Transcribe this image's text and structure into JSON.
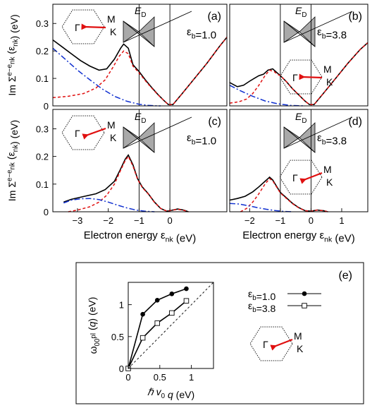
{
  "colors": {
    "total": "#000000",
    "red": "#e01010",
    "blue": "#1030d0",
    "cone": "#a9a9a9"
  },
  "chart_data": [
    {
      "id": "a",
      "type": "line",
      "panel_label": "(a)",
      "eps_label": "εb=1.0",
      "ylabel": "Im Σ^{e−e}_{nk} (ε_{nk}) (eV)",
      "xlim": [
        -3.8,
        1.85
      ],
      "ylim": [
        0,
        0.37
      ],
      "ticks": {
        "x": [],
        "y": [
          0,
          0.1,
          0.2,
          0.3
        ]
      },
      "vlines": [
        -1.0,
        0.0
      ],
      "ED_label": "E_D",
      "inset": {
        "gamma": "Γ",
        "m": "M",
        "k": "K",
        "arrow": "to-K"
      },
      "series": [
        {
          "color": "#000000",
          "dash": "",
          "x": [
            -3.8,
            -3.5,
            -3.2,
            -2.9,
            -2.6,
            -2.3,
            -2.05,
            -1.8,
            -1.6,
            -1.5,
            -1.35,
            -1.2,
            -1.0,
            -0.8,
            -0.6,
            -0.4,
            -0.2,
            -0.05,
            0.1,
            0.4,
            0.8,
            1.2,
            1.6,
            1.85
          ],
          "y": [
            0.24,
            0.215,
            0.19,
            0.165,
            0.145,
            0.13,
            0.135,
            0.17,
            0.21,
            0.225,
            0.21,
            0.15,
            0.125,
            0.095,
            0.068,
            0.043,
            0.02,
            0.005,
            0.005,
            0.045,
            0.1,
            0.155,
            0.215,
            0.25
          ]
        },
        {
          "color": "#e01010",
          "dash": "4,3",
          "x": [
            -3.8,
            -3.3,
            -2.8,
            -2.4,
            -2.1,
            -1.85,
            -1.65,
            -1.5,
            -1.35,
            -1.2,
            -1.0,
            -0.8,
            -0.6,
            -0.4,
            -0.2,
            -0.05,
            0.1,
            0.4,
            0.8,
            1.2,
            1.6,
            1.85
          ],
          "y": [
            0.03,
            0.035,
            0.045,
            0.065,
            0.095,
            0.14,
            0.18,
            0.2,
            0.19,
            0.145,
            0.12,
            0.092,
            0.066,
            0.042,
            0.02,
            0.005,
            0.005,
            0.045,
            0.1,
            0.155,
            0.215,
            0.25
          ]
        },
        {
          "color": "#1030d0",
          "dash": "8,3,2,3",
          "x": [
            -3.8,
            -3.4,
            -3.0,
            -2.6,
            -2.2,
            -1.8,
            -1.4,
            -1.0,
            -0.7,
            -0.5,
            -0.3
          ],
          "y": [
            0.21,
            0.17,
            0.13,
            0.095,
            0.062,
            0.035,
            0.017,
            0.006,
            0.002,
            0.0005,
            0
          ]
        }
      ]
    },
    {
      "id": "b",
      "type": "line",
      "panel_label": "(b)",
      "eps_label": "εb=3.8",
      "xlim": [
        -2.65,
        1.85
      ],
      "ylim": [
        0,
        0.37
      ],
      "ticks": {
        "x": [],
        "y": []
      },
      "vlines": [
        -1.0,
        0.0
      ],
      "ED_label": "E_D",
      "inset": {
        "gamma": "Γ",
        "m": "M",
        "k": "K",
        "arrow": "to-K"
      },
      "series": [
        {
          "color": "#000000",
          "dash": "",
          "x": [
            -2.65,
            -2.4,
            -2.2,
            -2.0,
            -1.85,
            -1.7,
            -1.55,
            -1.4,
            -1.25,
            -1.1,
            -1.0,
            -0.8,
            -0.6,
            -0.4,
            -0.2,
            -0.05,
            0.1,
            0.4,
            0.8,
            1.2,
            1.6,
            1.85
          ],
          "y": [
            0.085,
            0.07,
            0.075,
            0.09,
            0.1,
            0.11,
            0.115,
            0.13,
            0.135,
            0.12,
            0.11,
            0.088,
            0.062,
            0.04,
            0.018,
            0.005,
            0.005,
            0.045,
            0.1,
            0.155,
            0.205,
            0.23
          ]
        },
        {
          "color": "#e01010",
          "dash": "4,3",
          "x": [
            -2.65,
            -2.35,
            -2.1,
            -1.9,
            -1.7,
            -1.5,
            -1.35,
            -1.2,
            -1.1,
            -1.0,
            -0.8,
            -0.6,
            -0.4,
            -0.2,
            -0.05,
            0.1,
            0.4,
            0.8,
            1.2,
            1.6,
            1.85
          ],
          "y": [
            0.01,
            0.015,
            0.025,
            0.045,
            0.075,
            0.11,
            0.13,
            0.125,
            0.115,
            0.11,
            0.088,
            0.062,
            0.04,
            0.018,
            0.005,
            0.005,
            0.045,
            0.1,
            0.155,
            0.205,
            0.23
          ]
        },
        {
          "color": "#1030d0",
          "dash": "8,3,2,3",
          "x": [
            -2.65,
            -2.3,
            -1.9,
            -1.5,
            -1.1,
            -0.7,
            -0.4,
            -0.2
          ],
          "y": [
            0.075,
            0.055,
            0.035,
            0.018,
            0.008,
            0.002,
            0.0005,
            0
          ]
        }
      ]
    },
    {
      "id": "c",
      "type": "line",
      "panel_label": "(c)",
      "eps_label": "εb=1.0",
      "ylabel": "Im Σ^{e−e}_{nk} (ε_{nk}) (eV)",
      "xlabel": "Electron energy ε_{nk} (eV)",
      "xlim": [
        -3.8,
        1.85
      ],
      "ylim": [
        0,
        0.37
      ],
      "ticks": {
        "x": [
          -3,
          -2,
          -1,
          0
        ],
        "y": [
          0,
          0.1,
          0.2,
          0.3
        ]
      },
      "vlines": [
        -1.0,
        0.0
      ],
      "ED_label": "E_D",
      "inset": {
        "gamma": "Γ",
        "m": "M",
        "k": "K",
        "arrow": "to-M"
      },
      "series": [
        {
          "color": "#000000",
          "dash": "",
          "x": [
            -3.45,
            -3.2,
            -2.8,
            -2.4,
            -2.1,
            -1.8,
            -1.6,
            -1.45,
            -1.35,
            -1.2,
            -1.05,
            -0.9,
            -0.7,
            -0.5,
            -0.3,
            -0.1,
            0.05,
            0.25,
            0.45,
            0.6
          ],
          "y": [
            0.035,
            0.045,
            0.055,
            0.065,
            0.08,
            0.11,
            0.155,
            0.19,
            0.205,
            0.17,
            0.12,
            0.09,
            0.065,
            0.035,
            0.012,
            0.002,
            0.005,
            0.01,
            0.006,
            0
          ]
        },
        {
          "color": "#e01010",
          "dash": "4,3",
          "x": [
            -3.3,
            -3.0,
            -2.6,
            -2.3,
            -2.05,
            -1.8,
            -1.6,
            -1.45,
            -1.35,
            -1.2,
            -1.05,
            -0.9,
            -0.7,
            -0.5,
            -0.3,
            -0.1,
            0.05,
            0.25,
            0.45,
            0.6
          ],
          "y": [
            0,
            0.006,
            0.018,
            0.035,
            0.06,
            0.1,
            0.15,
            0.185,
            0.2,
            0.165,
            0.118,
            0.088,
            0.064,
            0.034,
            0.012,
            0.002,
            0.005,
            0.009,
            0.005,
            0
          ]
        },
        {
          "color": "#1030d0",
          "dash": "8,3,2,3",
          "x": [
            -3.45,
            -3.2,
            -2.9,
            -2.6,
            -2.3,
            -2.0,
            -1.7,
            -1.4,
            -1.1,
            -0.8,
            -0.5
          ],
          "y": [
            0.032,
            0.042,
            0.047,
            0.048,
            0.044,
            0.035,
            0.024,
            0.014,
            0.006,
            0.002,
            0
          ]
        }
      ]
    },
    {
      "id": "d",
      "type": "line",
      "panel_label": "(d)",
      "eps_label": "εb=3.8",
      "xlabel": "Electron energy ε_{nk} (eV)",
      "xlim": [
        -2.65,
        1.85
      ],
      "ylim": [
        0,
        0.37
      ],
      "ticks": {
        "x": [
          -2,
          -1,
          0,
          1
        ],
        "y": []
      },
      "vlines": [
        -1.0,
        0.0
      ],
      "ED_label": "E_D",
      "inset": {
        "gamma": "Γ",
        "m": "M",
        "k": "K",
        "arrow": "to-M"
      },
      "series": [
        {
          "color": "#000000",
          "dash": "",
          "x": [
            -2.65,
            -2.4,
            -2.15,
            -1.9,
            -1.7,
            -1.5,
            -1.35,
            -1.25,
            -1.1,
            -1.0,
            -0.8,
            -0.6,
            -0.4,
            -0.2,
            0.0,
            0.2,
            0.4,
            0.55
          ],
          "y": [
            0.042,
            0.048,
            0.056,
            0.072,
            0.09,
            0.11,
            0.125,
            0.115,
            0.088,
            0.07,
            0.05,
            0.03,
            0.015,
            0.004,
            0.002,
            0.006,
            0.004,
            0
          ]
        },
        {
          "color": "#e01010",
          "dash": "4,3",
          "x": [
            -2.3,
            -2.1,
            -1.9,
            -1.7,
            -1.5,
            -1.35,
            -1.25,
            -1.1,
            -1.0,
            -0.8,
            -0.6,
            -0.4,
            -0.2,
            0.0,
            0.2,
            0.4,
            0.55
          ],
          "y": [
            0,
            0.012,
            0.035,
            0.065,
            0.1,
            0.12,
            0.112,
            0.086,
            0.068,
            0.048,
            0.029,
            0.014,
            0.004,
            0.002,
            0.006,
            0.004,
            0
          ]
        },
        {
          "color": "#1030d0",
          "dash": "8,3,2,3",
          "x": [
            -2.65,
            -2.35,
            -2.05,
            -1.75,
            -1.45,
            -1.15,
            -0.85,
            -0.6
          ],
          "y": [
            0.03,
            0.028,
            0.022,
            0.015,
            0.009,
            0.004,
            0.001,
            0
          ]
        }
      ]
    },
    {
      "id": "e",
      "type": "line",
      "panel_label": "(e)",
      "xlabel": "ℏ v0 q (eV)",
      "ylabel": "ω^{pl}_{00} (q) (eV)",
      "xlim": [
        0,
        1.35
      ],
      "ylim": [
        0,
        1.35
      ],
      "ticks": {
        "x": [
          0,
          0.5,
          1
        ],
        "y": [
          0,
          0.5,
          1
        ]
      },
      "legend_position": "right",
      "inset": {
        "gamma": "Γ",
        "m": "M",
        "k": "K",
        "arrow": "to-M"
      },
      "series": [
        {
          "name": "εb=1.0",
          "marker": "filled-circle",
          "color": "#000000",
          "x": [
            0,
            0.23,
            0.46,
            0.69,
            0.92
          ],
          "y": [
            0,
            0.85,
            1.07,
            1.17,
            1.25
          ]
        },
        {
          "name": "εb=3.8",
          "marker": "open-square",
          "color": "#000000",
          "x": [
            0,
            0.23,
            0.46,
            0.69,
            0.92
          ],
          "y": [
            0,
            0.48,
            0.71,
            0.87,
            1.06
          ]
        },
        {
          "name": "",
          "marker": "none",
          "dash": "3,3",
          "color": "#000000",
          "x": [
            0,
            1.35
          ],
          "y": [
            0,
            1.35
          ]
        }
      ]
    }
  ]
}
